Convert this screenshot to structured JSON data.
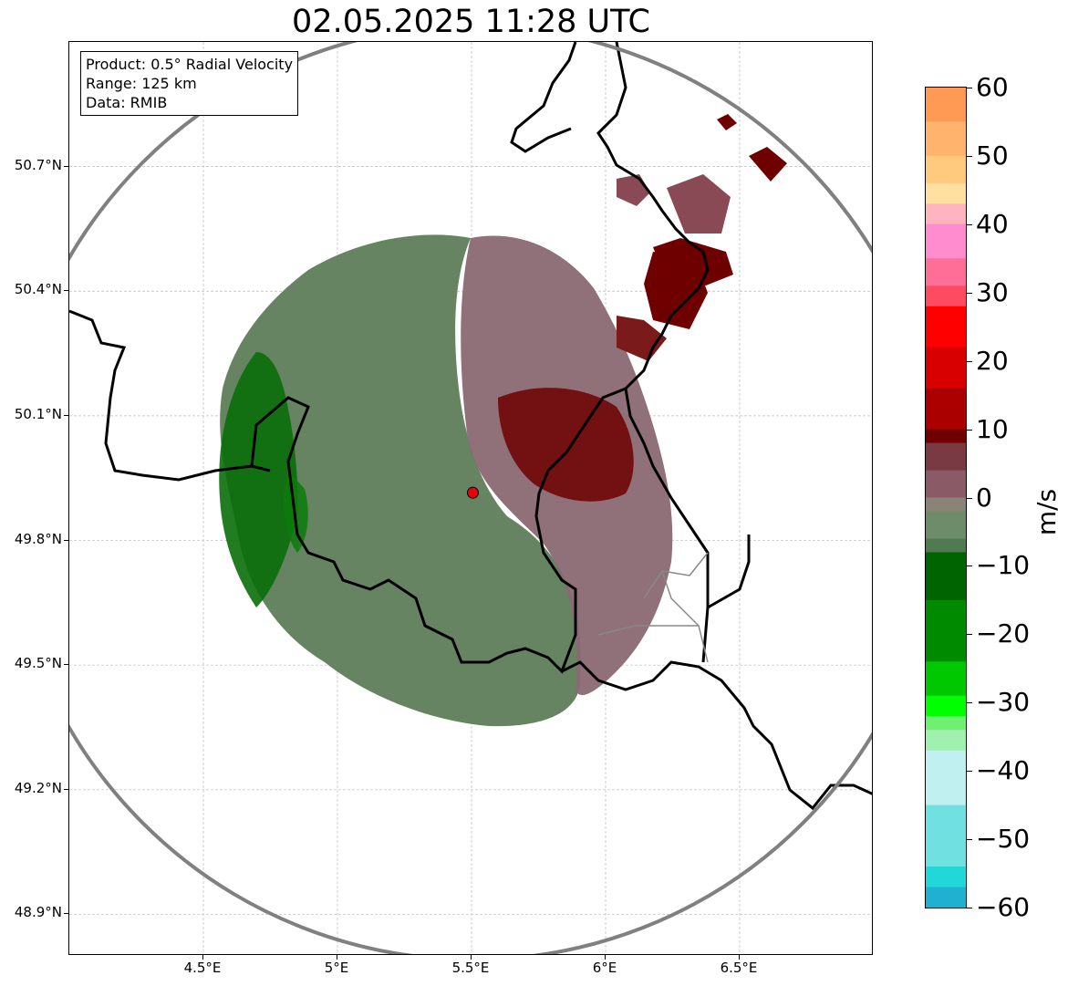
{
  "title": "02.05.2025 11:28 UTC",
  "info_box": {
    "line1": "Product: 0.5° Radial Velocity",
    "line2": "Range: 125 km",
    "line3": "Data: RMIB"
  },
  "map": {
    "lon_range": [
      4.0,
      7.0
    ],
    "lat_range": [
      48.8,
      51.0
    ],
    "lat_ticks": [
      {
        "value": 50.7,
        "label": "50.7°N"
      },
      {
        "value": 50.4,
        "label": "50.4°N"
      },
      {
        "value": 50.1,
        "label": "50.1°N"
      },
      {
        "value": 49.8,
        "label": "49.8°N"
      },
      {
        "value": 49.5,
        "label": "49.5°N"
      },
      {
        "value": 49.2,
        "label": "49.2°N"
      },
      {
        "value": 48.9,
        "label": "48.9°N"
      }
    ],
    "lon_ticks": [
      {
        "value": 4.5,
        "label": "4.5°E"
      },
      {
        "value": 5.0,
        "label": "5°E"
      },
      {
        "value": 5.5,
        "label": "5.5°E"
      },
      {
        "value": 6.0,
        "label": "6°E"
      },
      {
        "value": 6.5,
        "label": "6.5°E"
      }
    ],
    "radar_site": {
      "lon": 5.505,
      "lat": 49.915
    },
    "range_ring_km": 125,
    "grid": true,
    "colors": {
      "inbound": "#5a7a55",
      "inbound_strong": "#0a6e0a",
      "outbound": "#8a6470",
      "outbound_strong": "#6e0000",
      "border": "#000000",
      "subborder": "#888888",
      "ring": "#808080",
      "site": "#e8000b"
    }
  },
  "colorbar": {
    "unit": "m/s",
    "min": -60,
    "max": 60,
    "ticks": [
      60,
      50,
      40,
      30,
      20,
      10,
      0,
      -10,
      -20,
      -30,
      -40,
      -50,
      -60
    ],
    "tick_labels": [
      "60",
      "50",
      "40",
      "30",
      "20",
      "10",
      "0",
      "−10",
      "−20",
      "−30",
      "−40",
      "−50",
      "−60"
    ],
    "stops": [
      {
        "v": 60,
        "c": "#ff9a55"
      },
      {
        "v": 55,
        "c": "#ffb46e"
      },
      {
        "v": 50,
        "c": "#ffc97e"
      },
      {
        "v": 46,
        "c": "#ffe0a0"
      },
      {
        "v": 43,
        "c": "#ffb4c0"
      },
      {
        "v": 40,
        "c": "#ff8ccc"
      },
      {
        "v": 35,
        "c": "#ff6e96"
      },
      {
        "v": 31,
        "c": "#ff4a60"
      },
      {
        "v": 28,
        "c": "#ff0000"
      },
      {
        "v": 22,
        "c": "#d80000"
      },
      {
        "v": 16,
        "c": "#aa0000"
      },
      {
        "v": 10,
        "c": "#700000"
      },
      {
        "v": 8,
        "c": "#7a3a44"
      },
      {
        "v": 4,
        "c": "#8a5a66"
      },
      {
        "v": 0,
        "c": "#8a8478"
      },
      {
        "v": -2,
        "c": "#6e8c6a"
      },
      {
        "v": -6,
        "c": "#507a50"
      },
      {
        "v": -8,
        "c": "#006400"
      },
      {
        "v": -15,
        "c": "#008a00"
      },
      {
        "v": -24,
        "c": "#00c800"
      },
      {
        "v": -29,
        "c": "#00ff00"
      },
      {
        "v": -32,
        "c": "#70f070"
      },
      {
        "v": -34,
        "c": "#a0f0b0"
      },
      {
        "v": -37,
        "c": "#c0f0f0"
      },
      {
        "v": -45,
        "c": "#70e0e0"
      },
      {
        "v": -54,
        "c": "#20d8d8"
      },
      {
        "v": -57,
        "c": "#20b0d0"
      },
      {
        "v": -60,
        "c": "#2080c8"
      }
    ]
  }
}
